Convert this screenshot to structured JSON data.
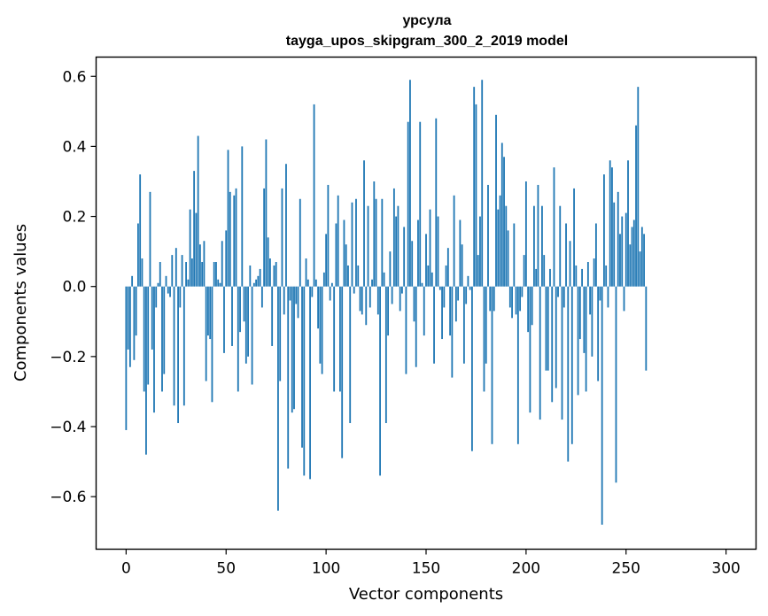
{
  "chart_data": {
    "type": "bar",
    "title": "урсула",
    "subtitle": "tayga_upos_skipgram_300_2_2019 model",
    "xlabel": "Vector components",
    "ylabel": "Components values",
    "xlim": [
      -15,
      315
    ],
    "ylim": [
      -0.75,
      0.655
    ],
    "xticks": [
      0,
      50,
      100,
      150,
      200,
      250,
      300
    ],
    "xtick_labels": [
      "0",
      "50",
      "100",
      "150",
      "200",
      "250",
      "300"
    ],
    "yticks": [
      -0.6,
      -0.4,
      -0.2,
      0.0,
      0.2,
      0.4,
      0.6
    ],
    "ytick_labels": [
      "−0.6",
      "−0.4",
      "−0.2",
      "0.0",
      "0.2",
      "0.4",
      "0.6"
    ],
    "grid": false,
    "bar_color": "#1f77b4",
    "values": [
      -0.41,
      -0.18,
      -0.23,
      0.03,
      -0.21,
      -0.14,
      0.18,
      0.32,
      0.08,
      -0.3,
      -0.48,
      -0.28,
      0.27,
      -0.18,
      -0.36,
      -0.06,
      0.01,
      0.07,
      -0.3,
      -0.25,
      0.03,
      -0.02,
      -0.03,
      0.09,
      -0.34,
      0.11,
      -0.39,
      -0.06,
      0.09,
      -0.34,
      0.07,
      0.02,
      0.22,
      0.08,
      0.33,
      0.21,
      0.43,
      0.12,
      0.07,
      0.13,
      -0.27,
      -0.14,
      -0.15,
      -0.33,
      0.07,
      0.07,
      0.02,
      0.01,
      0.13,
      -0.19,
      0.16,
      0.39,
      0.27,
      -0.17,
      0.26,
      0.28,
      -0.3,
      -0.13,
      0.4,
      -0.1,
      -0.22,
      -0.2,
      0.06,
      -0.28,
      0.01,
      0.02,
      0.03,
      0.05,
      -0.06,
      0.28,
      0.42,
      0.14,
      0.08,
      -0.17,
      0.06,
      0.07,
      -0.64,
      -0.27,
      0.28,
      -0.08,
      0.35,
      -0.52,
      -0.04,
      -0.36,
      -0.35,
      -0.05,
      -0.09,
      0.25,
      -0.46,
      -0.54,
      0.08,
      0.02,
      -0.55,
      -0.03,
      0.52,
      0.02,
      -0.12,
      -0.22,
      -0.25,
      0.04,
      0.15,
      0.29,
      -0.04,
      0.01,
      -0.3,
      0.18,
      0.26,
      -0.3,
      -0.49,
      0.19,
      0.12,
      0.06,
      -0.39,
      0.24,
      -0.02,
      0.25,
      0.06,
      -0.07,
      -0.08,
      0.36,
      -0.11,
      0.23,
      -0.06,
      0.02,
      0.3,
      0.25,
      -0.08,
      -0.54,
      0.25,
      0.04,
      -0.39,
      -0.14,
      0.1,
      -0.05,
      0.28,
      0.2,
      0.23,
      -0.07,
      -0.02,
      0.17,
      -0.25,
      0.47,
      0.59,
      0.13,
      -0.1,
      -0.23,
      0.19,
      0.47,
      0.01,
      -0.14,
      0.15,
      0.06,
      0.22,
      0.04,
      -0.22,
      0.48,
      0.2,
      -0.01,
      -0.15,
      -0.06,
      0.06,
      0.11,
      -0.14,
      -0.26,
      0.26,
      -0.1,
      -0.04,
      0.19,
      0.12,
      -0.22,
      -0.05,
      0.03,
      -0.01,
      -0.47,
      0.57,
      0.52,
      0.09,
      0.2,
      0.59,
      -0.3,
      -0.22,
      0.29,
      -0.07,
      -0.45,
      -0.07,
      0.49,
      0.22,
      0.26,
      0.41,
      0.37,
      0.23,
      0.16,
      -0.06,
      -0.09,
      0.18,
      -0.08,
      -0.45,
      -0.07,
      -0.03,
      0.09,
      0.3,
      -0.13,
      -0.36,
      -0.11,
      0.23,
      0.05,
      0.29,
      -0.38,
      0.23,
      0.09,
      -0.24,
      -0.24,
      0.05,
      -0.33,
      0.34,
      -0.29,
      -0.03,
      0.23,
      -0.38,
      -0.06,
      0.18,
      -0.5,
      0.13,
      -0.45,
      0.28,
      0.06,
      -0.31,
      -0.15,
      0.05,
      -0.19,
      -0.3,
      0.07,
      -0.08,
      -0.2,
      0.08,
      0.18,
      -0.27,
      -0.04,
      -0.68,
      0.32,
      0.06,
      -0.06,
      0.36,
      0.34,
      0.24,
      -0.56,
      0.27,
      0.15,
      0.2,
      -0.07,
      0.21,
      0.36,
      0.12,
      0.17,
      0.19,
      0.46,
      0.57,
      0.1,
      0.17,
      0.15,
      -0.24
    ]
  }
}
